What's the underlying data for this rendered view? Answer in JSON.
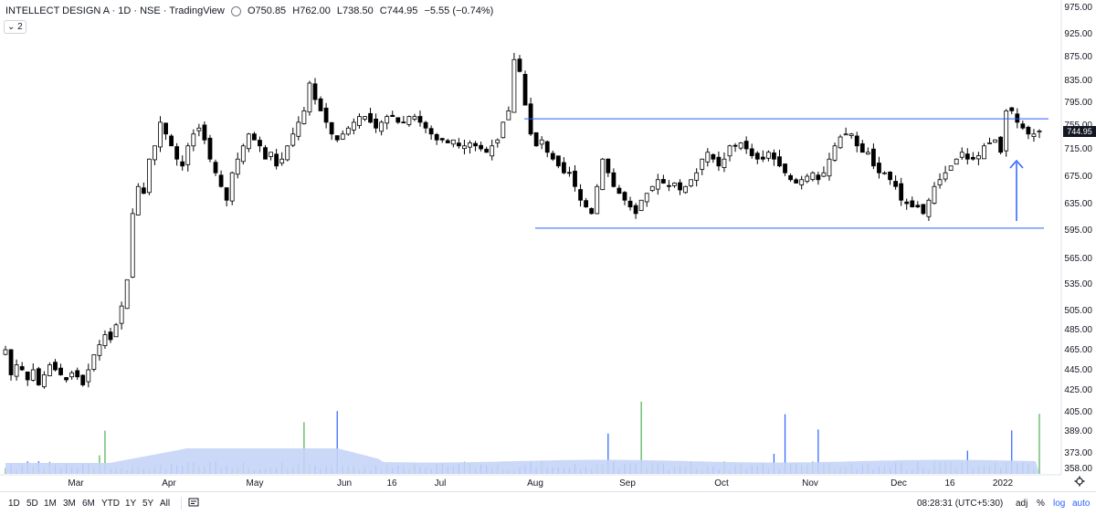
{
  "legend": {
    "symbol": "INTELLECT DESIGN A · 1D · NSE · TradingView",
    "open_label": "O",
    "open": "750.85",
    "high_label": "H",
    "high": "762.00",
    "low_label": "L",
    "low": "738.50",
    "close_label": "C",
    "close": "744.95",
    "change": "−5.55 (−0.74%)",
    "indicator_count": "2"
  },
  "price_tag": "744.95",
  "bottom_bar": {
    "timeframes": [
      "1D",
      "5D",
      "1M",
      "3M",
      "6M",
      "YTD",
      "1Y",
      "5Y",
      "All"
    ],
    "time": "08:28:31 (UTC+5:30)",
    "adj": "adj",
    "percent": "%",
    "log": "log",
    "auto": "auto"
  },
  "colors": {
    "up": "#ffffff",
    "down": "#000000",
    "wick": "#000000",
    "volume_up": "#4caf50",
    "volume_down": "#2962ff",
    "volume_ma": "#c5d4f7",
    "trendline": "#2962ff",
    "arrow": "#2962ff"
  },
  "icons": [
    "eye-icon",
    "compare-icon",
    "gear-icon",
    "arrow-up-annotation"
  ],
  "chart_data": {
    "type": "candlestick",
    "price_axis": {
      "ticks": [
        "975.00",
        "925.00",
        "875.00",
        "835.00",
        "795.00",
        "755.00",
        "715.00",
        "675.00",
        "635.00",
        "595.00",
        "565.00",
        "535.00",
        "505.00",
        "485.00",
        "465.00",
        "445.00",
        "425.00",
        "405.00",
        "389.00",
        "373.00",
        "358.00"
      ],
      "scale": "log",
      "range": [
        355,
        980
      ]
    },
    "time_axis": {
      "labels": [
        "Mar",
        "Apr",
        "May",
        "Jun",
        "16",
        "Jul",
        "Aug",
        "Sep",
        "Oct",
        "Nov",
        "Dec",
        "16",
        "2022"
      ]
    },
    "horizontal_lines": [
      {
        "price": 766,
        "from": "Jul end",
        "to": "Jan"
      },
      {
        "price": 598,
        "from": "Aug start",
        "to": "Jan"
      }
    ],
    "close_series": [
      465,
      440,
      450,
      445,
      435,
      445,
      430,
      440,
      450,
      445,
      440,
      435,
      442,
      438,
      430,
      445,
      460,
      470,
      480,
      475,
      490,
      510,
      540,
      620,
      660,
      650,
      700,
      720,
      760,
      740,
      720,
      700,
      690,
      720,
      740,
      750,
      730,
      700,
      680,
      660,
      640,
      680,
      700,
      720,
      740,
      730,
      720,
      700,
      710,
      690,
      700,
      720,
      740,
      760,
      780,
      830,
      800,
      780,
      760,
      740,
      730,
      740,
      750,
      760,
      770,
      770,
      760,
      750,
      760,
      770,
      770,
      760,
      760,
      770,
      770,
      760,
      750,
      740,
      730,
      730,
      725,
      730,
      720,
      720,
      725,
      720,
      715,
      710,
      720,
      730,
      760,
      780,
      870,
      850,
      790,
      740,
      720,
      730,
      710,
      700,
      690,
      680,
      680,
      660,
      640,
      630,
      620,
      660,
      700,
      680,
      660,
      650,
      640,
      630,
      620,
      640,
      650,
      660,
      670,
      665,
      660,
      665,
      655,
      660,
      670,
      680,
      700,
      710,
      700,
      690,
      700,
      720,
      720,
      725,
      715,
      705,
      700,
      700,
      710,
      700,
      690,
      680,
      670,
      665,
      670,
      675,
      680,
      670,
      680,
      700,
      720,
      735,
      740,
      740,
      720,
      710,
      710,
      690,
      680,
      680,
      670,
      660,
      640,
      635,
      630,
      630,
      620,
      640,
      660,
      670,
      680,
      690,
      700,
      710,
      700,
      700,
      705,
      720,
      725,
      730,
      710,
      780,
      780,
      760,
      750,
      740,
      740,
      745
    ],
    "volume_ma_level": "medium",
    "annotation": "arrow pointing up near Dec 2021 at support"
  }
}
